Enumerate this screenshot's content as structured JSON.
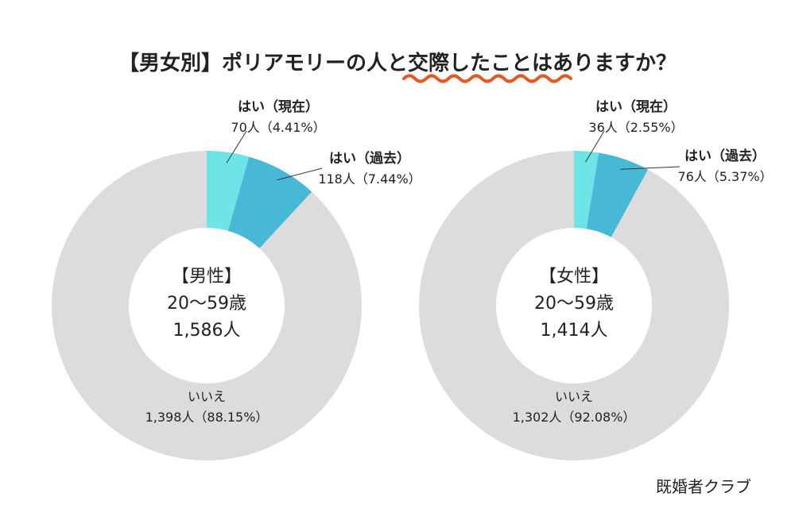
{
  "title": "【男女別】ポリアモリーの人と交際したことはありますか？",
  "credit": "既婚者クラブ",
  "colors": {
    "current": "#6ee3e8",
    "past": "#47b9d6",
    "no": "#dcdcdc",
    "accent": "#e8571f"
  },
  "chart_data": [
    {
      "type": "pie",
      "center_label": [
        "【男性】",
        "20〜59歳",
        "1,586人"
      ],
      "slices": [
        {
          "label": "はい（現在）",
          "value_text": "70人（4.41%）",
          "count": 70,
          "percent": 4.41
        },
        {
          "label": "はい（過去）",
          "value_text": "118人（7.44%）",
          "count": 118,
          "percent": 7.44
        },
        {
          "label": "いいえ",
          "value_text": "1,398人（88.15%）",
          "count": 1398,
          "percent": 88.15
        }
      ]
    },
    {
      "type": "pie",
      "center_label": [
        "【女性】",
        "20〜59歳",
        "1,414人"
      ],
      "slices": [
        {
          "label": "はい（現在）",
          "value_text": "36人（2.55%）",
          "count": 36,
          "percent": 2.55
        },
        {
          "label": "はい（過去）",
          "value_text": "76人（5.37%）",
          "count": 76,
          "percent": 5.37
        },
        {
          "label": "いいえ",
          "value_text": "1,302人（92.08%）",
          "count": 1302,
          "percent": 92.08
        }
      ]
    }
  ]
}
